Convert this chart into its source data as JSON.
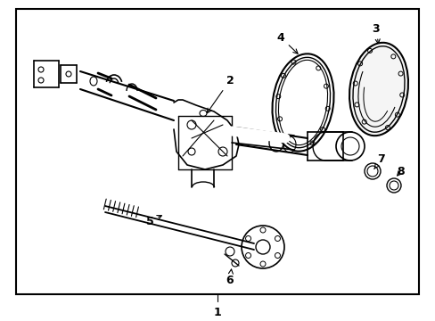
{
  "bg_color": "#ffffff",
  "border_color": "#000000",
  "line_color": "#000000",
  "fig_width": 4.89,
  "fig_height": 3.6,
  "dpi": 100
}
